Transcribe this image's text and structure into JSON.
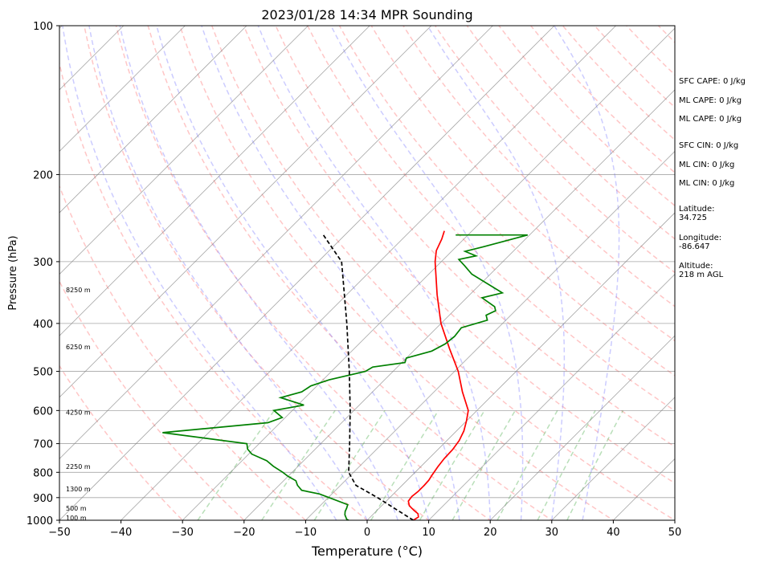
{
  "chart_data": {
    "type": "line",
    "title": "2023/01/28 14:34 MPR Sounding",
    "xlabel": "Temperature (°C)",
    "ylabel": "Pressure (hPa)",
    "xlim": [
      -50,
      50
    ],
    "ylim": [
      1000,
      100
    ],
    "y_scale": "log",
    "skew": "45 degrees",
    "grid": true,
    "x_ticks": [
      "−50",
      "−40",
      "−30",
      "−20",
      "−10",
      "0",
      "10",
      "20",
      "30",
      "40",
      "50"
    ],
    "y_ticks": [
      "100",
      "200",
      "300",
      "400",
      "500",
      "600",
      "700",
      "800",
      "900",
      "1000"
    ],
    "series": [
      {
        "role": "temperature",
        "color": "#ff0000",
        "points": [
          [
            7.5,
            1000
          ],
          [
            7.8,
            985
          ],
          [
            7.2,
            970
          ],
          [
            6,
            955
          ],
          [
            4.5,
            935
          ],
          [
            3.6,
            915
          ],
          [
            3.4,
            895
          ],
          [
            3.6,
            875
          ],
          [
            3.6,
            850
          ],
          [
            3.5,
            830
          ],
          [
            3.2,
            810
          ],
          [
            2.8,
            780
          ],
          [
            2.5,
            750
          ],
          [
            2.4,
            720
          ],
          [
            2,
            690
          ],
          [
            1.2,
            660
          ],
          [
            0,
            630
          ],
          [
            -1.4,
            600
          ],
          [
            -5.4,
            550
          ],
          [
            -9.4,
            500
          ],
          [
            -14.5,
            450
          ],
          [
            -20,
            400
          ],
          [
            -25.3,
            350
          ],
          [
            -31,
            300
          ],
          [
            -32.6,
            285
          ],
          [
            -33.6,
            270
          ],
          [
            -34.5,
            260
          ]
        ]
      },
      {
        "role": "dewpoint",
        "color": "#008000",
        "points": [
          [
            -3,
            1000
          ],
          [
            -3.5,
            995
          ],
          [
            -4.5,
            975
          ],
          [
            -5,
            960
          ],
          [
            -5.3,
            945
          ],
          [
            -5.7,
            930
          ],
          [
            -12,
            885
          ],
          [
            -15.5,
            870
          ],
          [
            -17,
            850
          ],
          [
            -18,
            832
          ],
          [
            -20,
            815
          ],
          [
            -21.5,
            800
          ],
          [
            -24,
            778
          ],
          [
            -26,
            758
          ],
          [
            -29.5,
            735
          ],
          [
            -31,
            718
          ],
          [
            -32,
            700
          ],
          [
            -47.5,
            665
          ],
          [
            -32,
            635
          ],
          [
            -30.5,
            620
          ],
          [
            -33,
            600
          ],
          [
            -29,
            585
          ],
          [
            -34,
            565
          ],
          [
            -31.5,
            550
          ],
          [
            -31,
            535
          ],
          [
            -29,
            520
          ],
          [
            -24.5,
            500
          ],
          [
            -24,
            490
          ],
          [
            -19.5,
            480
          ],
          [
            -20,
            470
          ],
          [
            -17,
            455
          ],
          [
            -16,
            440
          ],
          [
            -15.7,
            425
          ],
          [
            -16,
            408
          ],
          [
            -13,
            394
          ],
          [
            -14,
            385
          ],
          [
            -13.2,
            377
          ],
          [
            -14,
            370
          ],
          [
            -17.5,
            355
          ],
          [
            -15,
            347
          ],
          [
            -23,
            318
          ],
          [
            -25.5,
            306
          ],
          [
            -27.5,
            297
          ],
          [
            -25.3,
            292
          ],
          [
            -27.8,
            286
          ],
          [
            -25.6,
            280
          ],
          [
            -20.3,
            265
          ],
          [
            -32,
            265
          ]
        ]
      },
      {
        "role": "parcel-profile",
        "color": "#000000",
        "points": [
          [
            7.5,
            1000
          ],
          [
            -2,
            900
          ],
          [
            -7.5,
            850
          ],
          [
            -10.8,
            800
          ],
          [
            -15.3,
            700
          ],
          [
            -20.6,
            600
          ],
          [
            -27.1,
            500
          ],
          [
            -35.3,
            400
          ],
          [
            -46.2,
            300
          ],
          [
            -53.5,
            265
          ]
        ]
      }
    ],
    "height_labels": [
      "100 m",
      "500 m",
      "1300 m",
      "2250 m",
      "4250 m",
      "6250 m",
      "8250 m"
    ],
    "height_label_pressures": [
      989,
      946,
      865,
      778,
      605,
      446,
      342
    ],
    "dry_adiabats_theta_c": [
      -30,
      -20,
      -10,
      0,
      10,
      20,
      30,
      40,
      50,
      60,
      70,
      80,
      90,
      100,
      110,
      120,
      130,
      140,
      150,
      160,
      170,
      180,
      190,
      200
    ],
    "moist_adiabats_c": [
      -5,
      0,
      5,
      10,
      15,
      20,
      25,
      30,
      35
    ],
    "mixing_ratios_gkg": [
      0.4,
      1,
      2,
      4,
      7,
      10,
      16,
      24,
      32
    ],
    "isotherm_interval": 10
  },
  "indices": [
    "SFC CAPE: 0 J/kg",
    "ML CAPE: 0 J/kg",
    "ML CAPE: 0 J/kg",
    "SFC CIN: 0 J/kg",
    "ML CIN: 0 J/kg",
    "ML CIN: 0 J/kg"
  ],
  "location": [
    {
      "label": "Latitude:",
      "value": "34.725"
    },
    {
      "label": "Longitude:",
      "value": "-86.647"
    },
    {
      "label": "Altitude:",
      "value": "218 m AGL"
    }
  ],
  "colors": {
    "temperature": "#ff0000",
    "dewpoint": "#008000",
    "parcel": "#000000",
    "dry_adiabat": "#ff8080",
    "moist_adiabat": "#8080ff",
    "mixing_ratio": "#50b050",
    "isotherm": "#808080",
    "isobar": "#808080"
  }
}
